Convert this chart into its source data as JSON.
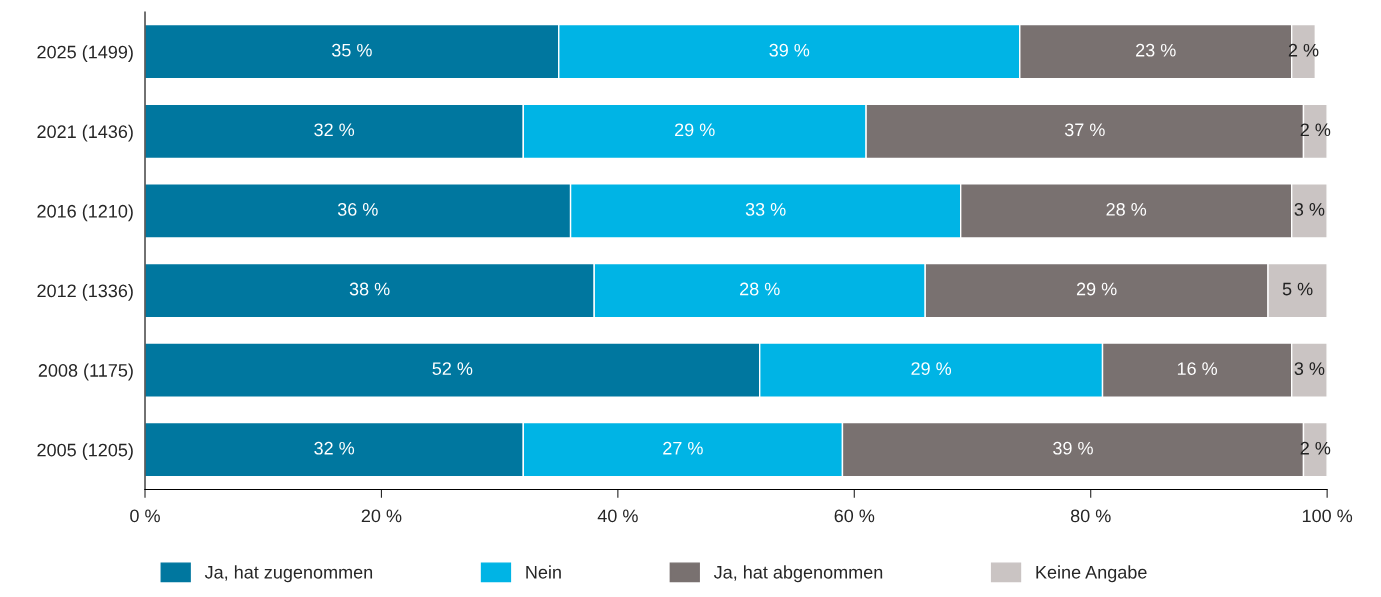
{
  "chart_data": {
    "type": "bar",
    "orientation": "horizontal",
    "stacked": true,
    "categories": [
      "2025 (1499)",
      "2021 (1436)",
      "2016 (1210)",
      "2012 (1336)",
      "2008 (1175)",
      "2005 (1205)"
    ],
    "series": [
      {
        "name": "Ja, hat zugenommen",
        "color": "#00779f",
        "values": [
          35,
          32,
          36,
          38,
          52,
          32
        ],
        "value_labels": [
          "35 %",
          "32 %",
          "36 %",
          "38 %",
          "52 %",
          "32 %"
        ]
      },
      {
        "name": "Nein",
        "color": "#00b4e5",
        "values": [
          39,
          29,
          33,
          28,
          29,
          27
        ],
        "value_labels": [
          "39 %",
          "29 %",
          "33 %",
          "28 %",
          "29 %",
          "27 %"
        ]
      },
      {
        "name": "Ja, hat abgenommen",
        "color": "#797170",
        "values": [
          23,
          37,
          28,
          29,
          16,
          39
        ],
        "value_labels": [
          "23 %",
          "37 %",
          "28 %",
          "29 %",
          "16 %",
          "39 %"
        ]
      },
      {
        "name": "Keine Angabe",
        "color": "#cac4c3",
        "values": [
          2,
          2,
          3,
          5,
          3,
          2
        ],
        "value_labels": [
          "2 %",
          "2 %",
          "3 %",
          "5 %",
          "3 %",
          "2 %"
        ]
      }
    ],
    "xlim": [
      0,
      100
    ],
    "xticks": [
      {
        "value": 0,
        "label": "0 %"
      },
      {
        "value": 20,
        "label": "20 %"
      },
      {
        "value": 40,
        "label": "40 %"
      },
      {
        "value": 60,
        "label": "60 %"
      },
      {
        "value": 80,
        "label": "80 %"
      },
      {
        "value": 100,
        "label": "100 %"
      }
    ],
    "grid": false,
    "legend": "bottom"
  }
}
